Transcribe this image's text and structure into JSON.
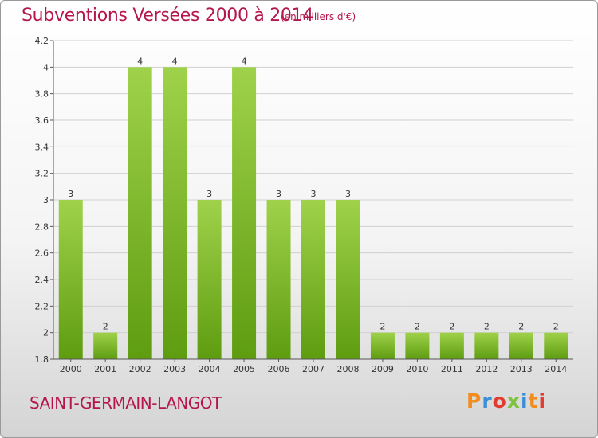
{
  "header": {
    "title": "Subventions Versées 2000 à 2014",
    "unit": "(en milliers d'€)"
  },
  "footer": {
    "commune": "SAINT-GERMAIN-LANGOT",
    "logo": "Proxiti",
    "logo_colors": [
      "#f28c1c",
      "#3a8fd6",
      "#e23b2f",
      "#7fc241",
      "#3a8fd6",
      "#f28c1c",
      "#e23b2f"
    ]
  },
  "colors": {
    "bar_top": "#9fd24a",
    "bar_bottom": "#5e9c10",
    "accent": "#b5174d"
  },
  "chart_data": {
    "type": "bar",
    "categories": [
      "2000",
      "2001",
      "2002",
      "2003",
      "2004",
      "2005",
      "2006",
      "2007",
      "2008",
      "2009",
      "2010",
      "2011",
      "2012",
      "2013",
      "2014"
    ],
    "values": [
      3,
      2,
      4,
      4,
      3,
      4,
      3,
      3,
      3,
      2,
      2,
      2,
      2,
      2,
      2
    ],
    "value_labels": [
      "3",
      "2",
      "4",
      "4",
      "3",
      "4",
      "3",
      "3",
      "3",
      "2",
      "2",
      "2",
      "2",
      "2",
      "2"
    ],
    "ylim": [
      1.8,
      4.2
    ],
    "yticks": [
      "1.8",
      "2",
      "2.2",
      "2.4",
      "2.6",
      "2.8",
      "3",
      "3.2",
      "3.4",
      "3.6",
      "3.8",
      "4",
      "4.2"
    ],
    "grid": true,
    "xlabel": "",
    "ylabel": ""
  }
}
